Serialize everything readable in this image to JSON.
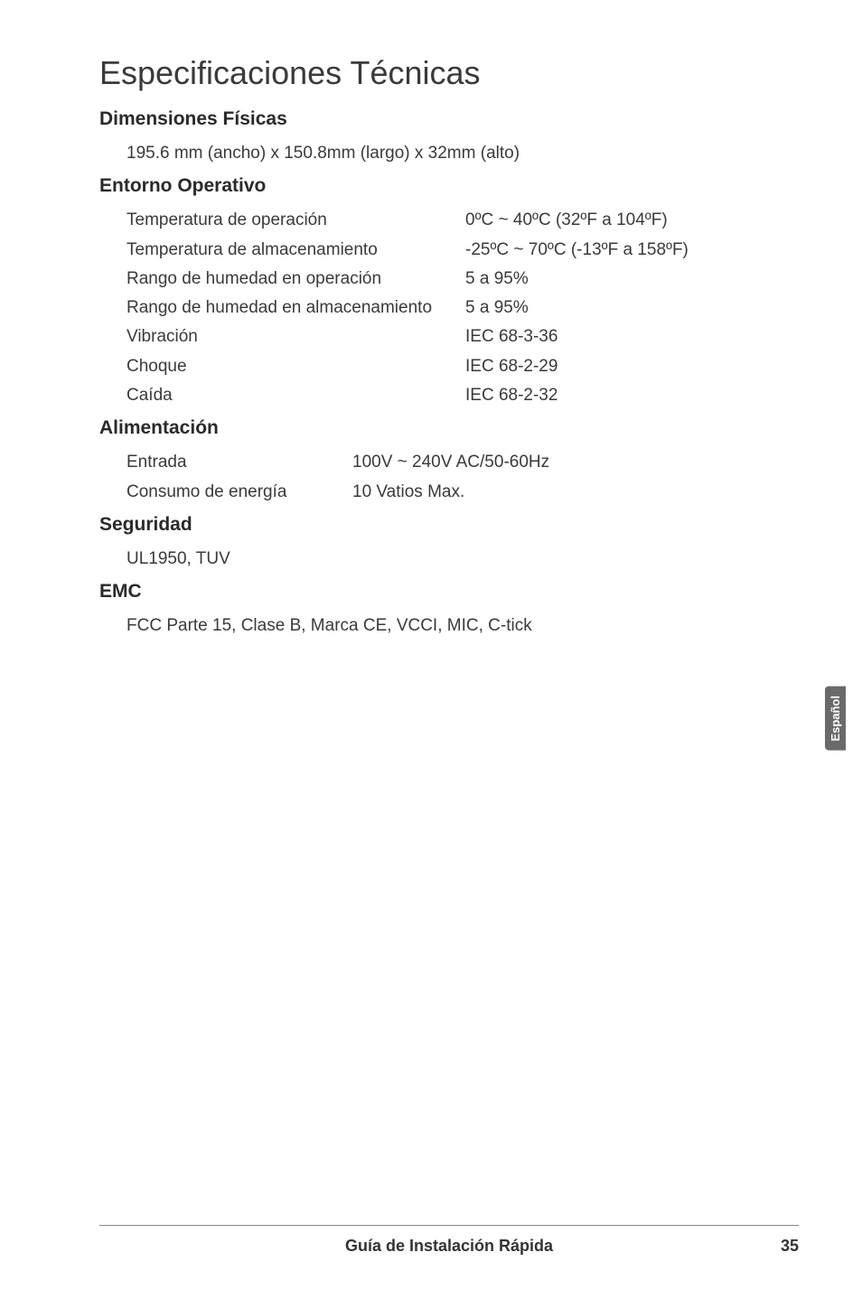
{
  "title": "Especificaciones Técnicas",
  "sections": {
    "dim": {
      "heading": "Dimensiones Físicas",
      "line": "195.6 mm (ancho) x 150.8mm (largo) x 32mm (alto)"
    },
    "env": {
      "heading": "Entorno Operativo",
      "rows": [
        {
          "label": "Temperatura de operación",
          "value": "0ºC ~ 40ºC (32ºF a 104ºF)"
        },
        {
          "label": "Temperatura de almacenamiento",
          "value": "-25ºC ~ 70ºC (-13ºF a 158ºF)"
        },
        {
          "label": "Rango de humedad en operación",
          "value": "5 a 95%"
        },
        {
          "label": "Rango de humedad en almacenamiento",
          "value": "5 a 95%"
        },
        {
          "label": "Vibración",
          "value": "IEC 68-3-36"
        },
        {
          "label": "Choque",
          "value": "IEC 68-2-29"
        },
        {
          "label": "Caída",
          "value": "IEC 68-2-32"
        }
      ]
    },
    "power": {
      "heading": "Alimentación",
      "rows": [
        {
          "label": "Entrada",
          "value": "100V ~ 240V AC/50-60Hz"
        },
        {
          "label": "Consumo de energía",
          "value": "10 Vatios Max."
        }
      ]
    },
    "safety": {
      "heading": "Seguridad",
      "line": "UL1950, TUV"
    },
    "emc": {
      "heading": "EMC",
      "line": "FCC Parte 15, Clase B, Marca CE, VCCI, MIC, C-tick"
    }
  },
  "sideTab": "Español",
  "footer": {
    "title": "Guía de Instalación Rápida",
    "page": "35"
  },
  "style": {
    "background": "#ffffff",
    "text_color": "#333333",
    "heading_color": "#2a2a2a",
    "title_fontsize": 36,
    "h2_fontsize": 21,
    "body_fontsize": 19,
    "sidetab_bg": "#6a6a6a",
    "sidetab_color": "#ffffff",
    "footer_border": "#888888"
  }
}
